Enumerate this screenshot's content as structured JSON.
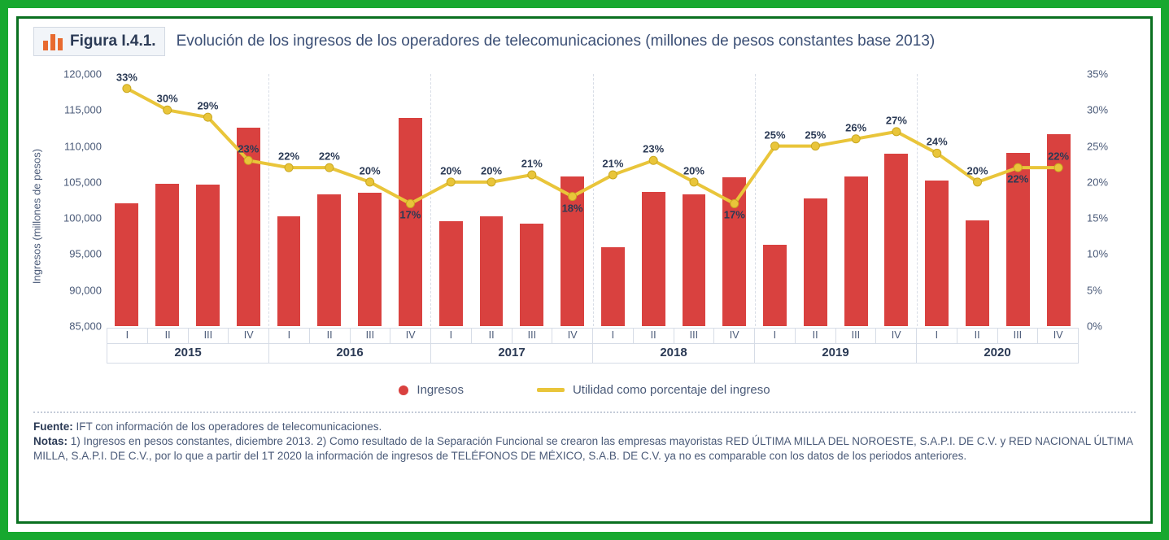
{
  "frame": {
    "outer_color": "#17a82f",
    "inner_color": "#0a7020"
  },
  "header": {
    "badge_label": "Figura I.4.1.",
    "title": "Evolución de los ingresos de los operadores de telecomunicaciones (millones de pesos constantes base 2013)",
    "icon_color": "#e86a2f",
    "badge_bg": "#f2f5f9",
    "badge_border": "#d3d9e3",
    "text_color": "#3b4f75"
  },
  "chart": {
    "type": "bar+line",
    "bar_color": "#d9413f",
    "line_color": "#e9c53a",
    "line_width": 4,
    "marker_radius": 5,
    "grid_color": "#d8dde6",
    "left_axis": {
      "label": "Ingresos (millones de pesos)",
      "min": 85000,
      "max": 120000,
      "step": 5000
    },
    "right_axis": {
      "min": 0,
      "max": 35,
      "step": 5,
      "suffix": "%"
    },
    "years": [
      "2015",
      "2016",
      "2017",
      "2018",
      "2019",
      "2020"
    ],
    "quarters": [
      "I",
      "II",
      "III",
      "IV"
    ],
    "bars": [
      102000,
      104800,
      104700,
      112600,
      100200,
      103300,
      103500,
      113900,
      99600,
      100300,
      99200,
      105800,
      95900,
      103600,
      103300,
      105700,
      96300,
      102700,
      105800,
      108900,
      105200,
      99700,
      109100,
      111700
    ],
    "line_pct": [
      33,
      30,
      29,
      23,
      22,
      22,
      20,
      17,
      20,
      20,
      21,
      18,
      21,
      23,
      20,
      17,
      25,
      25,
      26,
      27,
      24,
      20,
      22,
      22
    ],
    "pct_label_offset": [
      14,
      14,
      14,
      14,
      14,
      14,
      14,
      -14,
      14,
      14,
      14,
      -14,
      14,
      14,
      14,
      -14,
      14,
      14,
      14,
      14,
      14,
      14,
      -14,
      14
    ],
    "bar_width_ratio": 0.58
  },
  "legend": {
    "bar_label": "Ingresos",
    "line_label": "Utilidad como porcentaje del ingreso"
  },
  "notes": {
    "fuente_label": "Fuente:",
    "fuente_text": " IFT con información de los operadores de telecomunicaciones.",
    "notas_label": "Notas:",
    "notas_text": " 1) Ingresos en pesos constantes, diciembre 2013. 2) Como resultado de la Separación Funcional se crearon las empresas mayoristas RED ÚLTIMA MILLA DEL NOROESTE, S.A.P.I. DE C.V. y RED NACIONAL ÚLTIMA MILLA, S.A.P.I. DE C.V., por lo que a partir del 1T 2020 la información de ingresos de TELÉFONOS DE MÉXICO, S.A.B. DE C.V. ya no es comparable con los datos de los periodos anteriores."
  }
}
